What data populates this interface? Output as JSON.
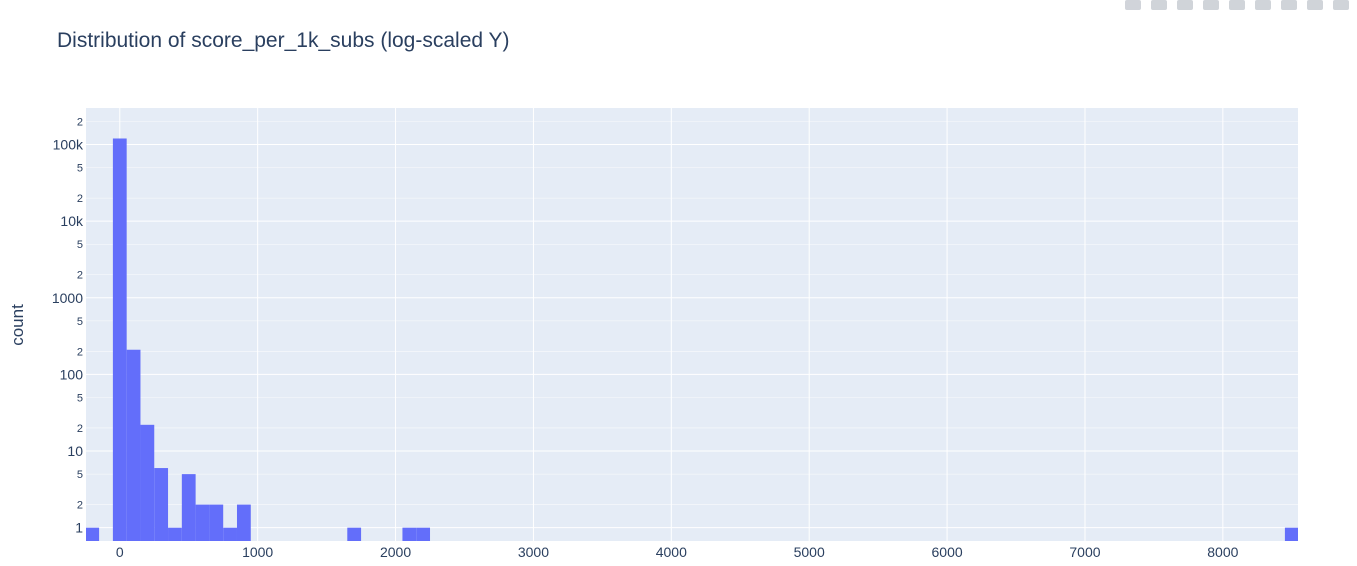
{
  "chart_data": {
    "type": "bar",
    "title": "Distribution of score_per_1k_subs (log-scaled Y)",
    "xlabel": "",
    "ylabel": "count",
    "y_scale": "log",
    "x_range": [
      -245,
      8545
    ],
    "y_range": [
      0.67,
      300000
    ],
    "bin_width": 100,
    "bar_color": "#636efa",
    "plot_background": "#e5ecf6",
    "grid": true,
    "legend": "none",
    "x_ticks": [
      0,
      1000,
      2000,
      3000,
      4000,
      5000,
      6000,
      7000,
      8000
    ],
    "x_tick_labels": [
      "0",
      "1000",
      "2000",
      "3000",
      "4000",
      "5000",
      "6000",
      "7000",
      "8000"
    ],
    "y_major_ticks": [
      1,
      10,
      100,
      1000,
      10000,
      100000
    ],
    "y_major_tick_labels": [
      "1",
      "10",
      "100",
      "1000",
      "10k",
      "100k"
    ],
    "y_minor_ticks": [
      2,
      5,
      20,
      50,
      200,
      500,
      2000,
      5000,
      20000,
      50000,
      200000
    ],
    "y_minor_tick_labels": [
      "2",
      "5",
      "2",
      "5",
      "2",
      "5",
      "2",
      "5",
      "2",
      "5",
      "2"
    ],
    "bins": [
      {
        "x0": -250,
        "x1": -150,
        "count": 1
      },
      {
        "x0": -50,
        "x1": 50,
        "count": 120000
      },
      {
        "x0": 50,
        "x1": 150,
        "count": 210
      },
      {
        "x0": 150,
        "x1": 250,
        "count": 22
      },
      {
        "x0": 250,
        "x1": 350,
        "count": 6
      },
      {
        "x0": 350,
        "x1": 450,
        "count": 1
      },
      {
        "x0": 450,
        "x1": 550,
        "count": 5
      },
      {
        "x0": 550,
        "x1": 650,
        "count": 2
      },
      {
        "x0": 650,
        "x1": 750,
        "count": 2
      },
      {
        "x0": 750,
        "x1": 850,
        "count": 1
      },
      {
        "x0": 850,
        "x1": 950,
        "count": 2
      },
      {
        "x0": 1650,
        "x1": 1750,
        "count": 1
      },
      {
        "x0": 2050,
        "x1": 2150,
        "count": 1
      },
      {
        "x0": 2150,
        "x1": 2250,
        "count": 1
      },
      {
        "x0": 8450,
        "x1": 8550,
        "count": 1
      }
    ]
  }
}
